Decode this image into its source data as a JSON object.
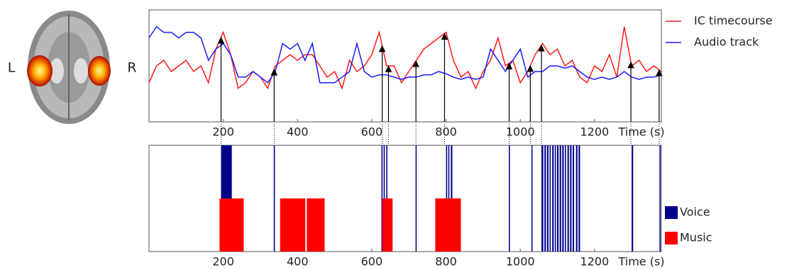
{
  "figure": {
    "left_label": "L",
    "right_label": "R"
  },
  "chart_data": [
    {
      "type": "line",
      "xlabel": "Time (s)",
      "xlim": [
        0,
        1380
      ],
      "xticks": [
        200,
        400,
        600,
        800,
        1000,
        1200
      ],
      "ylim": [
        0,
        1
      ],
      "x": [
        0,
        20,
        40,
        60,
        80,
        100,
        120,
        140,
        160,
        180,
        200,
        220,
        240,
        260,
        280,
        300,
        320,
        340,
        360,
        380,
        400,
        420,
        440,
        460,
        480,
        500,
        520,
        540,
        560,
        580,
        600,
        620,
        640,
        660,
        680,
        700,
        720,
        740,
        760,
        780,
        800,
        820,
        840,
        860,
        880,
        900,
        920,
        940,
        960,
        980,
        1000,
        1020,
        1040,
        1060,
        1080,
        1100,
        1120,
        1140,
        1160,
        1180,
        1200,
        1220,
        1240,
        1260,
        1280,
        1300,
        1320,
        1340,
        1360,
        1380
      ],
      "series": [
        {
          "name": "IC timecourse",
          "color": "#ff1a1a",
          "values": [
            0.35,
            0.5,
            0.55,
            0.45,
            0.5,
            0.55,
            0.45,
            0.5,
            0.35,
            0.65,
            0.8,
            0.6,
            0.3,
            0.35,
            0.45,
            0.4,
            0.3,
            0.5,
            0.55,
            0.6,
            0.55,
            0.6,
            0.6,
            0.5,
            0.4,
            0.45,
            0.3,
            0.55,
            0.45,
            0.5,
            0.6,
            0.8,
            0.5,
            0.5,
            0.35,
            0.45,
            0.55,
            0.65,
            0.7,
            0.75,
            0.8,
            0.55,
            0.4,
            0.45,
            0.3,
            0.45,
            0.55,
            0.75,
            0.5,
            0.55,
            0.35,
            0.45,
            0.6,
            0.7,
            0.6,
            0.65,
            0.5,
            0.55,
            0.4,
            0.35,
            0.5,
            0.45,
            0.6,
            0.4,
            0.85,
            0.5,
            0.55,
            0.45,
            0.5,
            0.45
          ]
        },
        {
          "name": "Audio track",
          "color": "#1a1aff",
          "values": [
            0.75,
            0.85,
            0.8,
            0.8,
            0.75,
            0.8,
            0.8,
            0.75,
            0.55,
            0.65,
            0.7,
            0.6,
            0.4,
            0.4,
            0.45,
            0.4,
            0.35,
            0.45,
            0.7,
            0.65,
            0.7,
            0.55,
            0.7,
            0.35,
            0.35,
            0.35,
            0.4,
            0.45,
            0.7,
            0.45,
            0.4,
            0.42,
            0.42,
            0.4,
            0.38,
            0.4,
            0.4,
            0.42,
            0.42,
            0.45,
            0.43,
            0.4,
            0.38,
            0.4,
            0.38,
            0.4,
            0.65,
            0.55,
            0.45,
            0.55,
            0.65,
            0.4,
            0.45,
            0.45,
            0.5,
            0.5,
            0.48,
            0.5,
            0.45,
            0.4,
            0.38,
            0.4,
            0.38,
            0.4,
            0.45,
            0.4,
            0.38,
            0.4,
            0.4,
            0.42
          ]
        }
      ],
      "arrows": [
        194,
        337,
        628,
        645,
        719,
        796,
        970,
        1027,
        1057,
        1298,
        1374
      ]
    },
    {
      "type": "interval",
      "xlabel": "Time (s)",
      "xlim": [
        0,
        1380
      ],
      "xticks": [
        200,
        400,
        600,
        800,
        1000,
        1200
      ],
      "series": [
        {
          "name": "Voice",
          "color": "#00008b",
          "values": [
            [
              194,
              223
            ],
            [
              336,
              339
            ],
            [
              626,
              629
            ],
            [
              632,
              635
            ],
            [
              639,
              642
            ],
            [
              718,
              720
            ],
            [
              800,
              803
            ],
            [
              806,
              809
            ],
            [
              813,
              817
            ],
            [
              969,
              972
            ],
            [
              1030,
              1032
            ],
            [
              1057,
              1062
            ],
            [
              1065,
              1069
            ],
            [
              1072,
              1076
            ],
            [
              1079,
              1082
            ],
            [
              1086,
              1090
            ],
            [
              1093,
              1096
            ],
            [
              1099,
              1103
            ],
            [
              1106,
              1110
            ],
            [
              1113,
              1117
            ],
            [
              1120,
              1123
            ],
            [
              1127,
              1131
            ],
            [
              1134,
              1138
            ],
            [
              1141,
              1145
            ],
            [
              1150,
              1154
            ],
            [
              1157,
              1161
            ],
            [
              1300,
              1304
            ],
            [
              1375,
              1378
            ]
          ]
        },
        {
          "name": "Music",
          "color": "#ff0000",
          "values": [
            [
              190,
              255
            ],
            [
              353,
              421
            ],
            [
              425,
              473
            ],
            [
              628,
              656
            ],
            [
              771,
              840
            ]
          ]
        }
      ]
    }
  ]
}
